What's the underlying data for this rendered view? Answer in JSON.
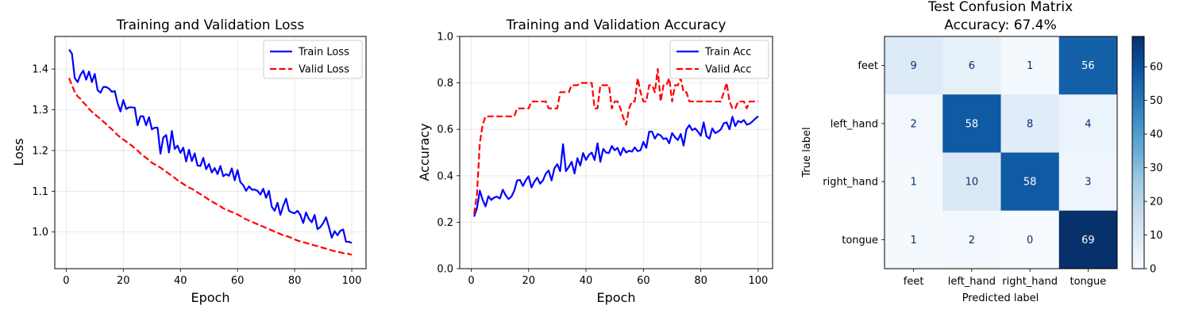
{
  "chart_data": [
    {
      "type": "line",
      "title": "Training and Validation Loss",
      "xlabel": "Epoch",
      "ylabel": "Loss",
      "xlim": [
        -4,
        105
      ],
      "ylim": [
        0.91,
        1.48
      ],
      "xticks": [
        0,
        20,
        40,
        60,
        80,
        100
      ],
      "yticks": [
        1.0,
        1.1,
        1.2,
        1.3,
        1.4
      ],
      "ytick_format": "1dp",
      "grid": true,
      "legend": "top-right",
      "x": [
        1,
        2,
        3,
        4,
        5,
        6,
        7,
        8,
        9,
        10,
        11,
        12,
        13,
        14,
        15,
        16,
        17,
        18,
        19,
        20,
        21,
        22,
        23,
        24,
        25,
        26,
        27,
        28,
        29,
        30,
        31,
        32,
        33,
        34,
        35,
        36,
        37,
        38,
        39,
        40,
        41,
        42,
        43,
        44,
        45,
        46,
        47,
        48,
        49,
        50,
        51,
        52,
        53,
        54,
        55,
        56,
        57,
        58,
        59,
        60,
        61,
        62,
        63,
        64,
        65,
        66,
        67,
        68,
        69,
        70,
        71,
        72,
        73,
        74,
        75,
        76,
        77,
        78,
        79,
        80,
        81,
        82,
        83,
        84,
        85,
        86,
        87,
        88,
        89,
        90,
        91,
        92,
        93,
        94,
        95,
        96,
        97,
        98,
        99,
        100
      ],
      "series": [
        {
          "name": "Train Loss",
          "color": "#0000ff",
          "dash": "solid",
          "values": [
            1.448,
            1.438,
            1.378,
            1.368,
            1.386,
            1.396,
            1.374,
            1.394,
            1.368,
            1.388,
            1.348,
            1.342,
            1.356,
            1.356,
            1.352,
            1.344,
            1.346,
            1.316,
            1.296,
            1.324,
            1.302,
            1.306,
            1.306,
            1.305,
            1.262,
            1.284,
            1.284,
            1.262,
            1.282,
            1.252,
            1.256,
            1.256,
            1.192,
            1.232,
            1.238,
            1.195,
            1.248,
            1.204,
            1.212,
            1.194,
            1.207,
            1.173,
            1.202,
            1.174,
            1.193,
            1.163,
            1.162,
            1.182,
            1.154,
            1.167,
            1.146,
            1.157,
            1.142,
            1.162,
            1.137,
            1.142,
            1.138,
            1.156,
            1.127,
            1.152,
            1.122,
            1.115,
            1.101,
            1.112,
            1.104,
            1.104,
            1.101,
            1.092,
            1.106,
            1.084,
            1.101,
            1.062,
            1.052,
            1.072,
            1.042,
            1.064,
            1.082,
            1.052,
            1.048,
            1.046,
            1.052,
            1.042,
            1.022,
            1.048,
            1.032,
            1.024,
            1.042,
            1.007,
            1.012,
            1.022,
            1.036,
            1.012,
            0.986,
            1.002,
            0.992,
            1.003,
            1.006,
            0.976,
            0.976,
            0.973
          ]
        },
        {
          "name": "Valid Loss",
          "color": "#ff0000",
          "dash": "dashed",
          "values": [
            1.378,
            1.36,
            1.344,
            1.333,
            1.327,
            1.318,
            1.311,
            1.302,
            1.295,
            1.289,
            1.283,
            1.278,
            1.271,
            1.265,
            1.258,
            1.252,
            1.245,
            1.238,
            1.232,
            1.227,
            1.222,
            1.217,
            1.212,
            1.205,
            1.2,
            1.193,
            1.187,
            1.182,
            1.176,
            1.17,
            1.166,
            1.162,
            1.158,
            1.153,
            1.148,
            1.143,
            1.138,
            1.133,
            1.127,
            1.122,
            1.118,
            1.113,
            1.109,
            1.106,
            1.102,
            1.097,
            1.093,
            1.088,
            1.084,
            1.079,
            1.075,
            1.071,
            1.067,
            1.063,
            1.058,
            1.055,
            1.052,
            1.049,
            1.046,
            1.043,
            1.039,
            1.035,
            1.031,
            1.028,
            1.025,
            1.022,
            1.019,
            1.016,
            1.013,
            1.01,
            1.007,
            1.004,
            1.001,
            0.998,
            0.995,
            0.992,
            0.99,
            0.988,
            0.985,
            0.982,
            0.979,
            0.977,
            0.975,
            0.973,
            0.971,
            0.969,
            0.967,
            0.965,
            0.963,
            0.961,
            0.959,
            0.957,
            0.955,
            0.953,
            0.951,
            0.95,
            0.948,
            0.947,
            0.946,
            0.944
          ]
        }
      ]
    },
    {
      "type": "line",
      "title": "Training and Validation Accuracy",
      "xlabel": "Epoch",
      "ylabel": "Accuracy",
      "xlim": [
        -4,
        105
      ],
      "ylim": [
        0.0,
        1.0
      ],
      "xticks": [
        0,
        20,
        40,
        60,
        80,
        100
      ],
      "yticks": [
        0.0,
        0.2,
        0.4,
        0.6,
        0.8,
        1.0
      ],
      "ytick_format": "1dp",
      "grid": true,
      "legend": "top-right",
      "x": [
        1,
        2,
        3,
        4,
        5,
        6,
        7,
        8,
        9,
        10,
        11,
        12,
        13,
        14,
        15,
        16,
        17,
        18,
        19,
        20,
        21,
        22,
        23,
        24,
        25,
        26,
        27,
        28,
        29,
        30,
        31,
        32,
        33,
        34,
        35,
        36,
        37,
        38,
        39,
        40,
        41,
        42,
        43,
        44,
        45,
        46,
        47,
        48,
        49,
        50,
        51,
        52,
        53,
        54,
        55,
        56,
        57,
        58,
        59,
        60,
        61,
        62,
        63,
        64,
        65,
        66,
        67,
        68,
        69,
        70,
        71,
        72,
        73,
        74,
        75,
        76,
        77,
        78,
        79,
        80,
        81,
        82,
        83,
        84,
        85,
        86,
        87,
        88,
        89,
        90,
        91,
        92,
        93,
        94,
        95,
        96,
        97,
        98,
        99,
        100
      ],
      "series": [
        {
          "name": "Train Acc",
          "color": "#0000ff",
          "dash": "solid",
          "values": [
            0.224,
            0.26,
            0.336,
            0.296,
            0.268,
            0.312,
            0.296,
            0.306,
            0.31,
            0.302,
            0.34,
            0.316,
            0.3,
            0.31,
            0.336,
            0.38,
            0.382,
            0.356,
            0.38,
            0.398,
            0.35,
            0.374,
            0.392,
            0.366,
            0.38,
            0.41,
            0.422,
            0.38,
            0.432,
            0.45,
            0.42,
            0.536,
            0.42,
            0.438,
            0.46,
            0.41,
            0.476,
            0.444,
            0.498,
            0.468,
            0.49,
            0.5,
            0.468,
            0.54,
            0.46,
            0.516,
            0.5,
            0.498,
            0.528,
            0.51,
            0.52,
            0.488,
            0.52,
            0.5,
            0.508,
            0.504,
            0.522,
            0.506,
            0.51,
            0.546,
            0.52,
            0.59,
            0.59,
            0.56,
            0.58,
            0.574,
            0.558,
            0.562,
            0.54,
            0.584,
            0.566,
            0.554,
            0.58,
            0.53,
            0.6,
            0.618,
            0.596,
            0.604,
            0.59,
            0.572,
            0.63,
            0.57,
            0.56,
            0.604,
            0.584,
            0.59,
            0.6,
            0.626,
            0.63,
            0.6,
            0.654,
            0.614,
            0.636,
            0.63,
            0.64,
            0.62,
            0.624,
            0.634,
            0.646,
            0.656
          ]
        },
        {
          "name": "Valid Acc",
          "color": "#ff0000",
          "dash": "dashed",
          "values": [
            0.236,
            0.32,
            0.54,
            0.62,
            0.656,
            0.656,
            0.656,
            0.656,
            0.656,
            0.656,
            0.656,
            0.656,
            0.656,
            0.656,
            0.656,
            0.69,
            0.69,
            0.69,
            0.69,
            0.69,
            0.72,
            0.72,
            0.72,
            0.72,
            0.72,
            0.72,
            0.69,
            0.69,
            0.69,
            0.69,
            0.76,
            0.76,
            0.76,
            0.76,
            0.79,
            0.79,
            0.79,
            0.8,
            0.8,
            0.8,
            0.8,
            0.8,
            0.69,
            0.69,
            0.79,
            0.79,
            0.79,
            0.79,
            0.69,
            0.72,
            0.72,
            0.69,
            0.65,
            0.62,
            0.69,
            0.72,
            0.72,
            0.82,
            0.76,
            0.72,
            0.72,
            0.79,
            0.79,
            0.76,
            0.86,
            0.72,
            0.79,
            0.79,
            0.82,
            0.72,
            0.79,
            0.79,
            0.82,
            0.76,
            0.76,
            0.72,
            0.72,
            0.72,
            0.72,
            0.72,
            0.72,
            0.72,
            0.72,
            0.72,
            0.72,
            0.72,
            0.72,
            0.76,
            0.8,
            0.72,
            0.69,
            0.69,
            0.72,
            0.72,
            0.72,
            0.69,
            0.72,
            0.72,
            0.72,
            0.72
          ]
        }
      ]
    },
    {
      "type": "heatmap",
      "title": "Test Confusion Matrix",
      "subtitle": "Accuracy: 67.4%",
      "xlabel": "Predicted label",
      "ylabel": "True label",
      "x_categories": [
        "feet",
        "left_hand",
        "right_hand",
        "tongue"
      ],
      "y_categories": [
        "feet",
        "left_hand",
        "right_hand",
        "tongue"
      ],
      "values": [
        [
          9,
          6,
          1,
          56
        ],
        [
          2,
          58,
          8,
          4
        ],
        [
          1,
          10,
          58,
          3
        ],
        [
          1,
          2,
          0,
          69
        ]
      ],
      "colormap": "Blues",
      "vmin": 0,
      "vmax": 69,
      "colorbar_ticks": [
        0,
        10,
        20,
        30,
        40,
        50,
        60
      ]
    }
  ]
}
